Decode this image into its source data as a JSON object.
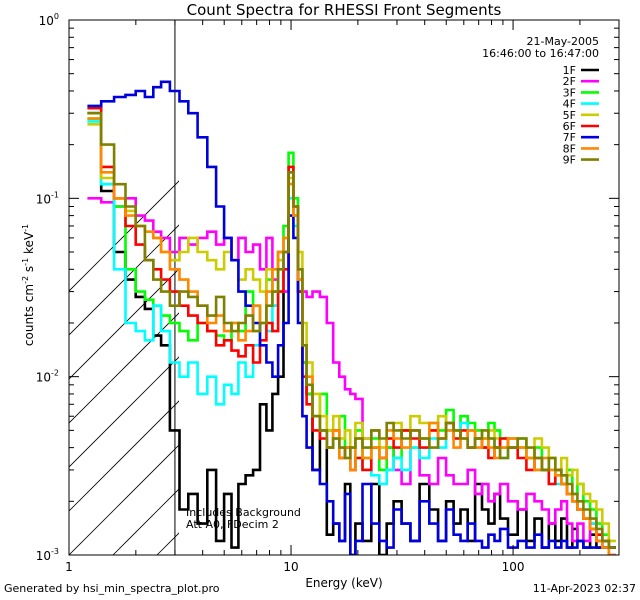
{
  "chart_data": {
    "type": "line",
    "title": "Count Spectra for RHESSI Front Segments",
    "xlabel": "Energy (keV)",
    "ylabel_parts": [
      "counts cm",
      "-2",
      " s",
      "-1",
      " keV",
      "-1"
    ],
    "xscale": "log",
    "yscale": "log",
    "xlim": [
      1,
      300
    ],
    "ylim": [
      0.001,
      1
    ],
    "x_ticks": [
      {
        "value": 1,
        "label": "1"
      },
      {
        "value": 10,
        "label": "10"
      },
      {
        "value": 100,
        "label": "100"
      }
    ],
    "y_ticks": [
      {
        "value": 1,
        "base": "10",
        "exp": "0"
      },
      {
        "value": 0.1,
        "base": "10",
        "exp": "-1"
      },
      {
        "value": 0.01,
        "base": "10",
        "exp": "-2"
      },
      {
        "value": 0.001,
        "base": "10",
        "exp": "-3"
      }
    ],
    "hatched_region": {
      "x_from": 1,
      "x_to": 3
    },
    "date": "21-May-2005",
    "time_range": "16:46:00 to 16:47:00",
    "annotations": [
      "Includes Background",
      "Att A0, FDecim 2"
    ],
    "legend_position": "top-right",
    "x": [
      1.3,
      1.5,
      1.7,
      1.9,
      2.1,
      2.3,
      2.5,
      2.7,
      3.0,
      3.3,
      3.6,
      4.0,
      4.4,
      4.8,
      5.2,
      5.6,
      6.0,
      6.5,
      7.0,
      7.5,
      8.0,
      8.5,
      9.0,
      9.5,
      10.0,
      10.5,
      11.0,
      11.5,
      12.0,
      13.0,
      14.0,
      15.0,
      16.0,
      17.0,
      18.0,
      19.0,
      20.0,
      22.0,
      24.0,
      26.0,
      28.0,
      30.0,
      33.0,
      36.0,
      40.0,
      44.0,
      48.0,
      52.0,
      56.0,
      60.0,
      65.0,
      70.0,
      75.0,
      80.0,
      85.0,
      90.0,
      100.0,
      110.0,
      120.0,
      130.0,
      140.0,
      150.0,
      160.0,
      170.0,
      180.0,
      190.0,
      200.0,
      215.0,
      230.0,
      245.0,
      260.0,
      280.0
    ],
    "series": [
      {
        "name": "1F",
        "color": "#000000",
        "values": [
          0.3,
          0.11,
          0.05,
          0.035,
          0.028,
          0.024,
          0.017,
          0.015,
          0.005,
          0.0018,
          0.0022,
          0.0015,
          0.003,
          0.0012,
          0.0022,
          0.0011,
          0.0025,
          0.0028,
          0.003,
          0.007,
          0.005,
          0.008,
          0.01,
          0.05,
          0.12,
          0.08,
          0.03,
          0.012,
          0.008,
          0.003,
          0.005,
          0.0013,
          0.0015,
          0.0012,
          0.0025,
          0.001,
          0.0015,
          0.0012,
          0.0025,
          0.001,
          0.0015,
          0.002,
          0.0015,
          0.0012,
          0.0025,
          0.0018,
          0.0012,
          0.002,
          0.0015,
          0.0018,
          0.0012,
          0.0025,
          0.0018,
          0.0015,
          0.0022,
          0.0016,
          0.0013,
          0.0018,
          0.0012,
          0.0016,
          0.0011,
          0.0015,
          0.0012,
          0.0016,
          0.0011,
          0.0014,
          0.0012,
          0.0011,
          0.0013,
          0.0011,
          0.0012,
          0.0011
        ]
      },
      {
        "name": "2F",
        "color": "#ff00ff",
        "values": [
          0.1,
          0.095,
          0.09,
          0.1,
          0.08,
          0.075,
          0.065,
          0.06,
          0.05,
          0.06,
          0.055,
          0.06,
          0.065,
          0.055,
          0.06,
          0.045,
          0.06,
          0.05,
          0.055,
          0.04,
          0.06,
          0.035,
          0.05,
          0.03,
          0.14,
          0.09,
          0.035,
          0.03,
          0.028,
          0.03,
          0.028,
          0.02,
          0.012,
          0.01,
          0.0085,
          0.008,
          0.0075,
          0.0045,
          0.005,
          0.0035,
          0.004,
          0.003,
          0.0025,
          0.005,
          0.0028,
          0.0025,
          0.0035,
          0.0028,
          0.0025,
          0.0025,
          0.003,
          0.0022,
          0.0025,
          0.002,
          0.0022,
          0.0025,
          0.002,
          0.0018,
          0.0022,
          0.002,
          0.0018,
          0.0015,
          0.0018,
          0.002,
          0.0015,
          0.0012,
          0.0015,
          0.0012,
          0.0015,
          0.0012,
          0.0011,
          0.001
        ]
      },
      {
        "name": "3F",
        "color": "#00ff00",
        "values": [
          0.28,
          0.12,
          0.09,
          0.04,
          0.03,
          0.027,
          0.025,
          0.022,
          0.02,
          0.018,
          0.016,
          0.02,
          0.018,
          0.017,
          0.016,
          0.02,
          0.018,
          0.03,
          0.025,
          0.02,
          0.035,
          0.025,
          0.05,
          0.07,
          0.18,
          0.1,
          0.04,
          0.012,
          0.008,
          0.006,
          0.008,
          0.005,
          0.0045,
          0.006,
          0.004,
          0.004,
          0.005,
          0.0035,
          0.0045,
          0.003,
          0.004,
          0.0035,
          0.005,
          0.004,
          0.0045,
          0.0055,
          0.005,
          0.0065,
          0.005,
          0.006,
          0.0055,
          0.005,
          0.0045,
          0.0055,
          0.005,
          0.0045,
          0.004,
          0.0045,
          0.0035,
          0.004,
          0.003,
          0.0035,
          0.003,
          0.0025,
          0.003,
          0.0022,
          0.0025,
          0.002,
          0.0018,
          0.0015,
          0.0013,
          0.0011
        ]
      },
      {
        "name": "4F",
        "color": "#00ffff",
        "values": [
          0.27,
          0.12,
          0.04,
          0.02,
          0.018,
          0.016,
          0.025,
          0.018,
          0.012,
          0.01,
          0.012,
          0.008,
          0.01,
          0.007,
          0.009,
          0.008,
          0.012,
          0.01,
          0.015,
          0.02,
          0.018,
          0.025,
          0.03,
          0.06,
          0.1,
          0.07,
          0.03,
          0.015,
          0.009,
          0.006,
          0.005,
          0.004,
          0.0045,
          0.004,
          0.0035,
          0.003,
          0.0035,
          0.003,
          0.0028,
          0.0025,
          0.003,
          0.0035,
          0.003,
          0.004,
          0.0035,
          0.0045,
          0.004,
          0.005,
          0.0045,
          0.0055,
          0.005,
          0.0045,
          0.004,
          0.0045,
          0.004,
          0.0035,
          0.0045,
          0.004,
          0.0035,
          0.003,
          0.0035,
          0.003,
          0.0025,
          0.0028,
          0.0022,
          0.002,
          0.0018,
          0.0016,
          0.0015,
          0.0013,
          0.0012,
          0.0011
        ]
      },
      {
        "name": "5F",
        "color": "#cccc00",
        "values": [
          0.26,
          0.13,
          0.1,
          0.085,
          0.07,
          0.065,
          0.06,
          0.05,
          0.045,
          0.05,
          0.06,
          0.05,
          0.045,
          0.04,
          0.05,
          0.045,
          0.035,
          0.04,
          0.035,
          0.03,
          0.04,
          0.03,
          0.045,
          0.06,
          0.13,
          0.08,
          0.05,
          0.02,
          0.012,
          0.008,
          0.006,
          0.005,
          0.006,
          0.0045,
          0.005,
          0.004,
          0.0055,
          0.0045,
          0.005,
          0.004,
          0.0045,
          0.0055,
          0.005,
          0.006,
          0.0055,
          0.005,
          0.006,
          0.0055,
          0.005,
          0.0045,
          0.005,
          0.0045,
          0.004,
          0.005,
          0.0045,
          0.004,
          0.0045,
          0.004,
          0.0035,
          0.0045,
          0.004,
          0.0035,
          0.003,
          0.0035,
          0.0028,
          0.003,
          0.0025,
          0.0022,
          0.002,
          0.0018,
          0.0015,
          0.0012
        ]
      },
      {
        "name": "6F",
        "color": "#ff0000",
        "values": [
          0.32,
          0.15,
          0.1,
          0.07,
          0.055,
          0.045,
          0.04,
          0.035,
          0.03,
          0.025,
          0.022,
          0.02,
          0.018,
          0.015,
          0.016,
          0.014,
          0.013,
          0.015,
          0.012,
          0.016,
          0.02,
          0.018,
          0.03,
          0.04,
          0.15,
          0.09,
          0.03,
          0.01,
          0.007,
          0.005,
          0.0045,
          0.004,
          0.005,
          0.0035,
          0.004,
          0.003,
          0.0035,
          0.003,
          0.004,
          0.0035,
          0.0045,
          0.004,
          0.005,
          0.0045,
          0.004,
          0.005,
          0.0045,
          0.0055,
          0.0045,
          0.005,
          0.004,
          0.0045,
          0.004,
          0.0035,
          0.004,
          0.0045,
          0.004,
          0.0035,
          0.003,
          0.0035,
          0.003,
          0.0025,
          0.003,
          0.0025,
          0.0022,
          0.002,
          0.0018,
          0.0016,
          0.0014,
          0.0013,
          0.0012,
          0.0011
        ]
      },
      {
        "name": "7F",
        "color": "#0000dd",
        "values": [
          0.33,
          0.35,
          0.37,
          0.38,
          0.4,
          0.37,
          0.42,
          0.45,
          0.4,
          0.35,
          0.3,
          0.22,
          0.15,
          0.09,
          0.06,
          0.045,
          0.03,
          0.025,
          0.02,
          0.015,
          0.012,
          0.01,
          0.015,
          0.02,
          0.08,
          0.06,
          0.02,
          0.006,
          0.004,
          0.003,
          0.0025,
          0.002,
          0.0015,
          0.0012,
          0.0022,
          0.001,
          0.0012,
          0.0025,
          0.0015,
          0.0012,
          0.0011,
          0.0018,
          0.0015,
          0.0012,
          0.002,
          0.0015,
          0.0012,
          0.0018,
          0.0013,
          0.0012,
          0.0015,
          0.0012,
          0.0011,
          0.0013,
          0.0012,
          0.0014,
          0.0011,
          0.0012,
          0.0011,
          0.0013,
          0.0011,
          0.0012,
          0.0011,
          0.0012,
          0.0011,
          0.0011,
          0.0012,
          0.0011,
          0.0011,
          0.0011,
          0.0011,
          0.0011
        ]
      },
      {
        "name": "8F",
        "color": "#ff8800",
        "values": [
          0.28,
          0.14,
          0.1,
          0.08,
          0.07,
          0.065,
          0.06,
          0.05,
          0.04,
          0.035,
          0.03,
          0.025,
          0.02,
          0.022,
          0.018,
          0.02,
          0.016,
          0.018,
          0.025,
          0.02,
          0.03,
          0.04,
          0.05,
          0.06,
          0.12,
          0.08,
          0.035,
          0.015,
          0.01,
          0.006,
          0.005,
          0.004,
          0.005,
          0.0035,
          0.004,
          0.003,
          0.0045,
          0.0035,
          0.004,
          0.0035,
          0.005,
          0.0045,
          0.004,
          0.005,
          0.0045,
          0.0055,
          0.0045,
          0.005,
          0.004,
          0.0045,
          0.005,
          0.004,
          0.0045,
          0.004,
          0.0035,
          0.004,
          0.0045,
          0.004,
          0.0035,
          0.003,
          0.0035,
          0.003,
          0.0028,
          0.0025,
          0.0022,
          0.002,
          0.0018,
          0.0016,
          0.0014,
          0.0012,
          0.0011,
          0.001
        ]
      },
      {
        "name": "9F",
        "color": "#808000",
        "values": [
          0.3,
          0.2,
          0.12,
          0.09,
          0.07,
          0.045,
          0.035,
          0.03,
          0.025,
          0.03,
          0.028,
          0.025,
          0.022,
          0.028,
          0.02,
          0.018,
          0.02,
          0.022,
          0.018,
          0.02,
          0.025,
          0.03,
          0.04,
          0.05,
          0.14,
          0.09,
          0.04,
          0.015,
          0.009,
          0.006,
          0.005,
          0.004,
          0.0045,
          0.004,
          0.0035,
          0.004,
          0.0045,
          0.004,
          0.005,
          0.0045,
          0.0055,
          0.005,
          0.0045,
          0.005,
          0.0045,
          0.004,
          0.0045,
          0.0055,
          0.005,
          0.0045,
          0.004,
          0.0045,
          0.005,
          0.0045,
          0.004,
          0.0035,
          0.004,
          0.0045,
          0.004,
          0.0035,
          0.003,
          0.0035,
          0.003,
          0.0028,
          0.0025,
          0.0022,
          0.002,
          0.0018,
          0.0016,
          0.0014,
          0.0012,
          0.0011
        ]
      }
    ]
  },
  "footer": {
    "generated_by": "Generated by hsi_min_spectra_plot.pro",
    "timestamp": "11-Apr-2023 02:37"
  }
}
